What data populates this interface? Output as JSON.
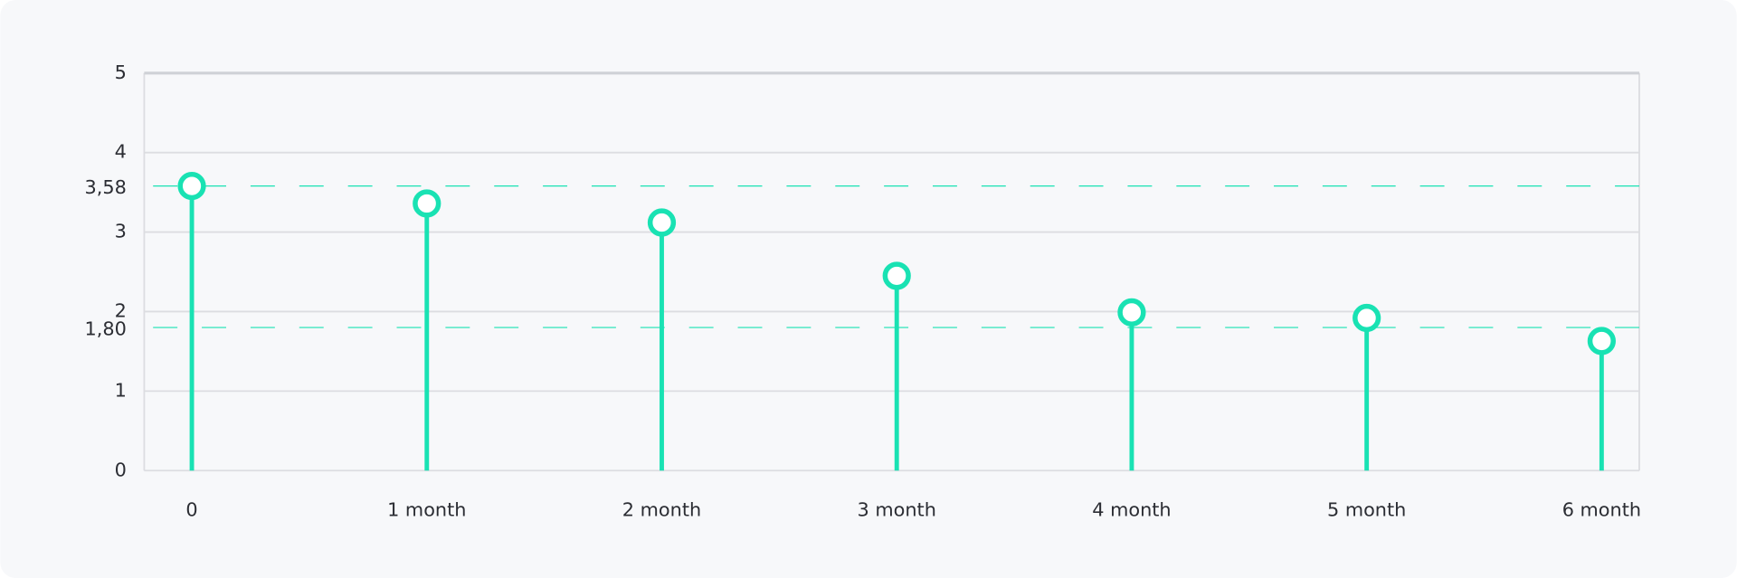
{
  "chart_data": {
    "type": "lollipop",
    "categories": [
      "0",
      "1 month",
      "2 month",
      "3 month",
      "4 month",
      "5 month",
      "6 month"
    ],
    "values": [
      3.58,
      3.36,
      3.12,
      2.45,
      1.99,
      1.92,
      1.63
    ],
    "color": "#19e2b3",
    "ylim": [
      0,
      5
    ],
    "yticks": [
      0,
      1,
      2,
      3,
      4,
      5
    ],
    "grid": true,
    "reference_lines": [
      {
        "value": 3.58,
        "label": "3,58"
      },
      {
        "value": 1.8,
        "label": "1,80"
      }
    ]
  }
}
